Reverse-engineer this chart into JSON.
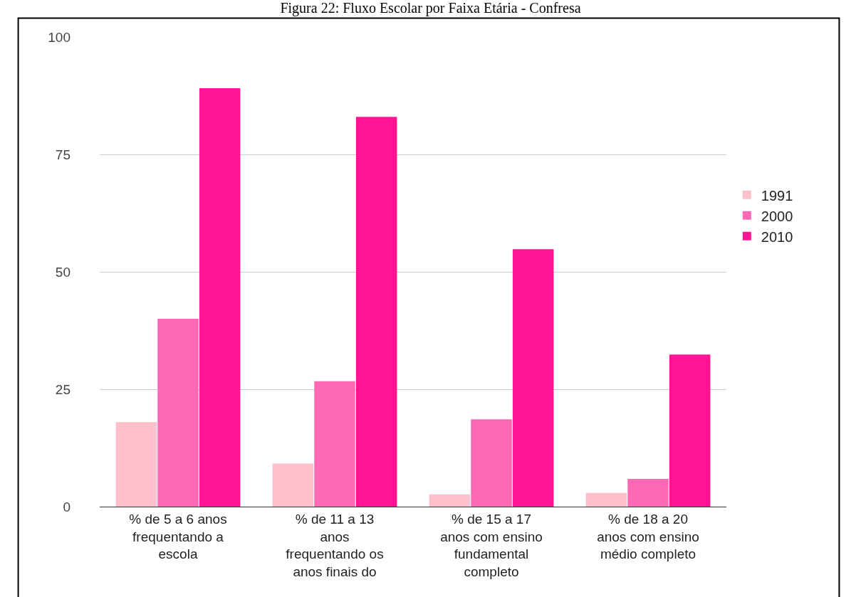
{
  "chart_data": {
    "type": "bar",
    "title": "Figura 22: Fluxo Escolar por Faixa Etária - Confresa",
    "categories": [
      "% de 5 a 6 anos\nfrequentando a\nescola",
      "% de 11 a 13\nanos\nfrequentando os\nanos finais do",
      "% de 15 a 17\nanos com ensino\nfundamental\ncompleto",
      "% de 18 a 20\nanos com ensino\nmédio completo"
    ],
    "series": [
      {
        "name": "1991",
        "color": "#ffc0cb",
        "values": [
          18.0,
          9.2,
          2.6,
          2.9
        ]
      },
      {
        "name": "2000",
        "color": "#ff69b4",
        "values": [
          40,
          26.7,
          18.6,
          5.9
        ]
      },
      {
        "name": "2010",
        "color": "#ff1493",
        "values": [
          89.1,
          83.0,
          54.8,
          32.4
        ]
      }
    ],
    "ylim": [
      0,
      100
    ],
    "yticks": [
      0,
      25,
      50,
      75,
      100
    ],
    "grid": "y",
    "legend": "right"
  }
}
